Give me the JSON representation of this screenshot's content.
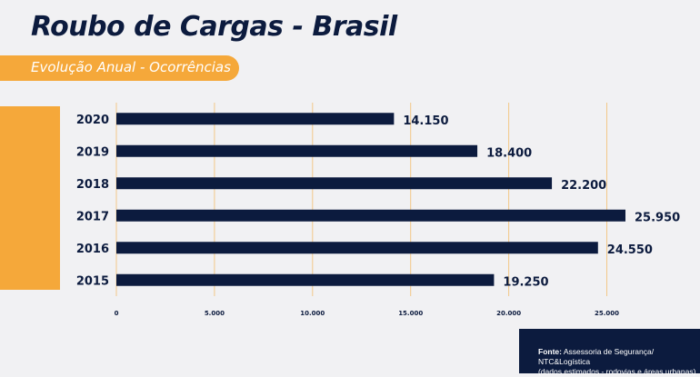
{
  "title": "Roubo de Cargas - Brasil",
  "subtitle": "Evolução Anual - Ocorrências",
  "colors": {
    "navy": "#0c1b3e",
    "orange": "#f5a83a",
    "grid": "#f2c888",
    "background": "#f1f1f3"
  },
  "source": {
    "label": "Fonte:",
    "text": "Assessoria de Segurança/ NTC&Logística",
    "note": "(dados estimados - rodovias e áreas urbanas)"
  },
  "chart_data": {
    "type": "bar",
    "orientation": "horizontal",
    "categories": [
      "2020",
      "2019",
      "2018",
      "2017",
      "2016",
      "2015"
    ],
    "values": [
      14150,
      18400,
      22200,
      25950,
      24550,
      19250
    ],
    "value_labels": [
      "14.150",
      "18.400",
      "22.200",
      "25.950",
      "24.550",
      "19.250"
    ],
    "x_ticks": [
      0,
      5000,
      10000,
      15000,
      20000,
      25000
    ],
    "x_tick_labels": [
      "0",
      "5.000",
      "10.000",
      "15.000",
      "20.000",
      "25.000"
    ],
    "xlim": [
      0,
      25950
    ],
    "grid": true,
    "legend": "none"
  }
}
